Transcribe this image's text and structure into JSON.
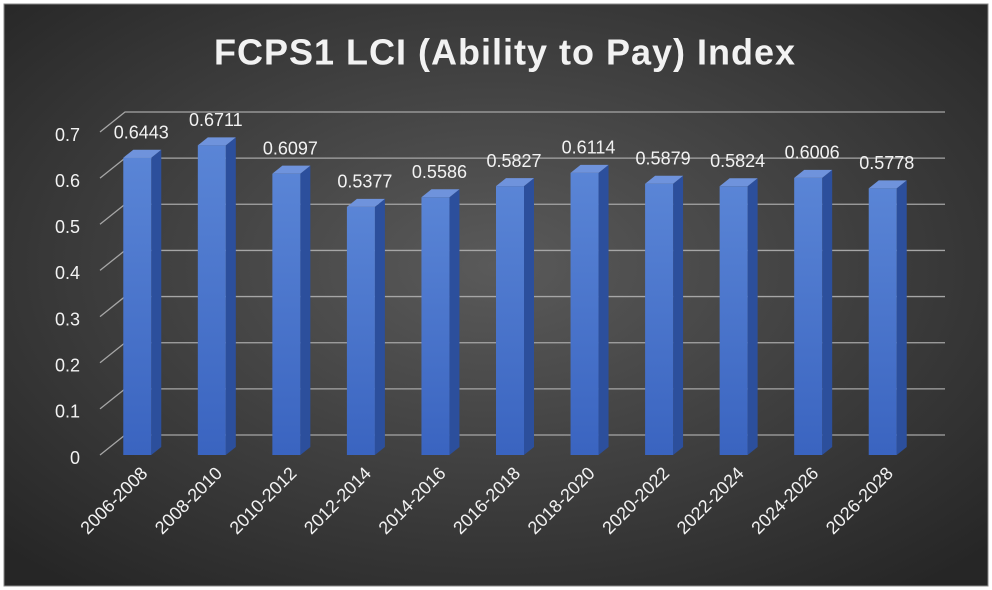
{
  "chart_data": {
    "type": "bar",
    "title": "FCPS1 LCI (Ability to Pay) Index",
    "categories": [
      "2006-2008",
      "2008-2010",
      "2010-2012",
      "2012-2014",
      "2014-2016",
      "2016-2018",
      "2018-2020",
      "2020-2022",
      "2022-2024",
      "2024-2026",
      "2026-2028"
    ],
    "values": [
      0.6443,
      0.6711,
      0.6097,
      0.5377,
      0.5586,
      0.5827,
      0.6114,
      0.5879,
      0.5824,
      0.6006,
      0.5778
    ],
    "color": "#4472c4",
    "ylim": [
      0,
      0.7
    ],
    "yticks": [
      0,
      0.1,
      0.2,
      0.3,
      0.4,
      0.5,
      0.6,
      0.7
    ],
    "grid": true
  }
}
